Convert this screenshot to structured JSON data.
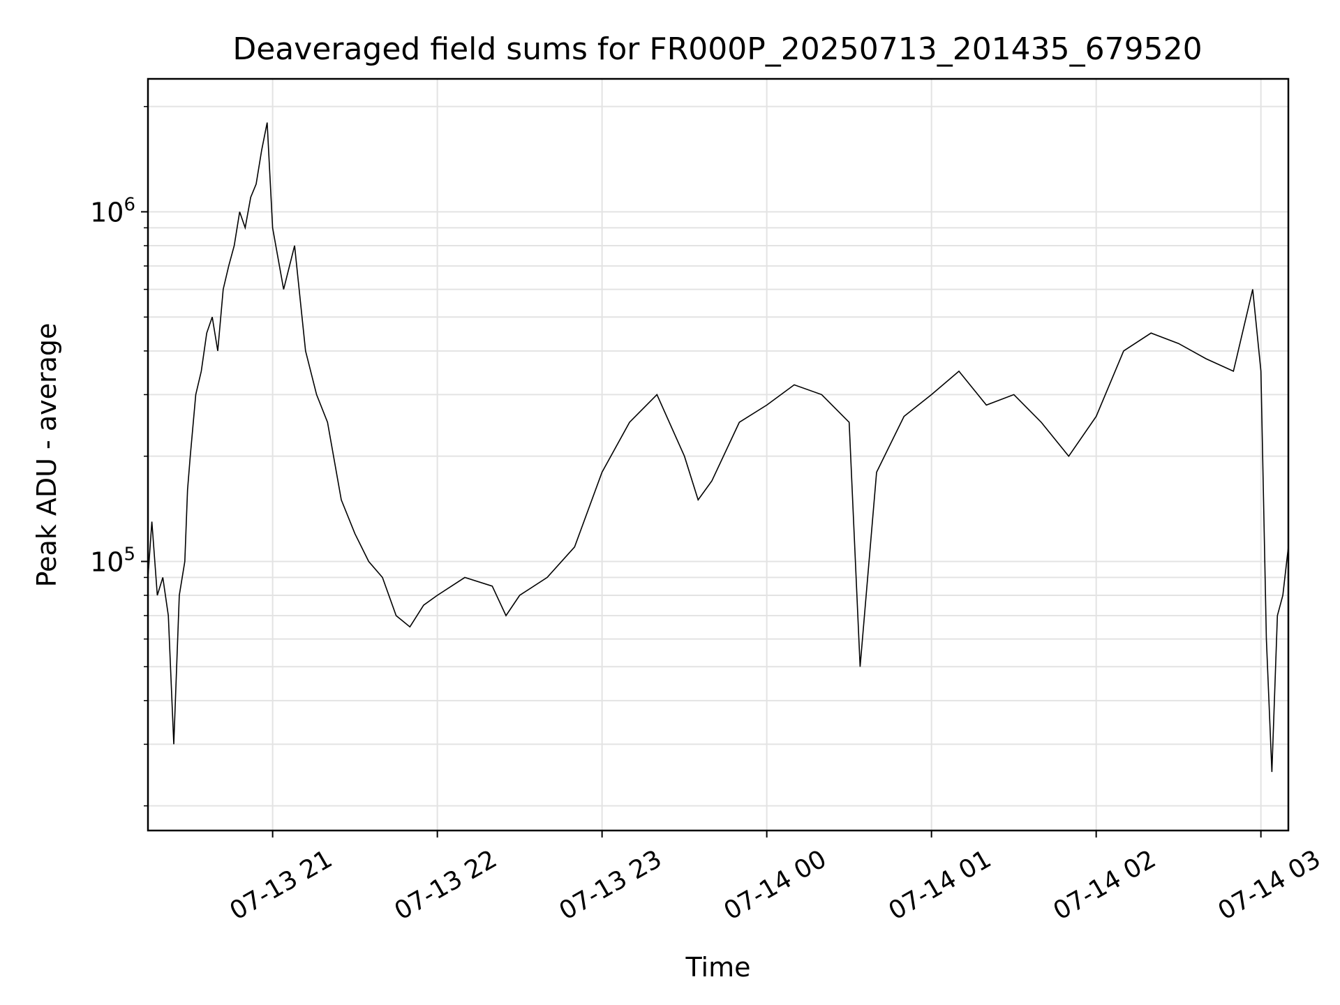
{
  "chart_data": {
    "type": "line",
    "title": "Deaveraged field sums for FR000P_20250713_201435_679520",
    "xlabel": "Time",
    "ylabel": "Peak ADU - average",
    "x_range": [
      "2025-07-13 20:14:35",
      "2025-07-14 03:10:00"
    ],
    "y_range": [
      17000,
      2400000
    ],
    "y_scale": "log",
    "grid": true,
    "line_color": "#000000",
    "x_ticks": [
      {
        "value": "2025-07-13 21:00",
        "label": "07-13 21"
      },
      {
        "value": "2025-07-13 22:00",
        "label": "07-13 22"
      },
      {
        "value": "2025-07-13 23:00",
        "label": "07-13 23"
      },
      {
        "value": "2025-07-14 00:00",
        "label": "07-14 00"
      },
      {
        "value": "2025-07-14 01:00",
        "label": "07-14 01"
      },
      {
        "value": "2025-07-14 02:00",
        "label": "07-14 02"
      },
      {
        "value": "2025-07-14 03:00",
        "label": "07-14 03"
      }
    ],
    "y_major_ticks": [
      {
        "value": 100000,
        "base": "10",
        "exp": "5"
      },
      {
        "value": 1000000,
        "base": "10",
        "exp": "6"
      }
    ],
    "series": [
      {
        "x": [
          "2025-07-13 20:14:35",
          "2025-07-13 20:16",
          "2025-07-13 20:18",
          "2025-07-13 20:20",
          "2025-07-13 20:22",
          "2025-07-13 20:24",
          "2025-07-13 20:26",
          "2025-07-13 20:28",
          "2025-07-13 20:29",
          "2025-07-13 20:30",
          "2025-07-13 20:32",
          "2025-07-13 20:34",
          "2025-07-13 20:36",
          "2025-07-13 20:38",
          "2025-07-13 20:40",
          "2025-07-13 20:42",
          "2025-07-13 20:44",
          "2025-07-13 20:46",
          "2025-07-13 20:48",
          "2025-07-13 20:50",
          "2025-07-13 20:52",
          "2025-07-13 20:54",
          "2025-07-13 20:56",
          "2025-07-13 20:58",
          "2025-07-13 21:00",
          "2025-07-13 21:04",
          "2025-07-13 21:08",
          "2025-07-13 21:12",
          "2025-07-13 21:16",
          "2025-07-13 21:20",
          "2025-07-13 21:25",
          "2025-07-13 21:30",
          "2025-07-13 21:35",
          "2025-07-13 21:40",
          "2025-07-13 21:45",
          "2025-07-13 21:50",
          "2025-07-13 21:55",
          "2025-07-13 22:00",
          "2025-07-13 22:10",
          "2025-07-13 22:20",
          "2025-07-13 22:25",
          "2025-07-13 22:30",
          "2025-07-13 22:40",
          "2025-07-13 22:50",
          "2025-07-13 23:00",
          "2025-07-13 23:10",
          "2025-07-13 23:20",
          "2025-07-13 23:30",
          "2025-07-13 23:35",
          "2025-07-13 23:40",
          "2025-07-13 23:50",
          "2025-07-14 00:00",
          "2025-07-14 00:10",
          "2025-07-14 00:20",
          "2025-07-14 00:30",
          "2025-07-14 00:34",
          "2025-07-14 00:40",
          "2025-07-14 00:50",
          "2025-07-14 01:00",
          "2025-07-14 01:10",
          "2025-07-14 01:20",
          "2025-07-14 01:30",
          "2025-07-14 01:40",
          "2025-07-14 01:50",
          "2025-07-14 02:00",
          "2025-07-14 02:10",
          "2025-07-14 02:20",
          "2025-07-14 02:30",
          "2025-07-14 02:40",
          "2025-07-14 02:50",
          "2025-07-14 02:57",
          "2025-07-14 03:00",
          "2025-07-14 03:02",
          "2025-07-14 03:04",
          "2025-07-14 03:06",
          "2025-07-14 03:08",
          "2025-07-14 03:10"
        ],
        "y": [
          90000,
          130000,
          80000,
          90000,
          70000,
          30000,
          80000,
          100000,
          160000,
          200000,
          300000,
          350000,
          450000,
          500000,
          400000,
          600000,
          700000,
          800000,
          1000000,
          900000,
          1100000,
          1200000,
          1500000,
          1800000,
          900000,
          600000,
          800000,
          400000,
          300000,
          250000,
          150000,
          120000,
          100000,
          90000,
          70000,
          65000,
          75000,
          80000,
          90000,
          85000,
          70000,
          80000,
          90000,
          110000,
          180000,
          250000,
          300000,
          200000,
          150000,
          170000,
          250000,
          280000,
          320000,
          300000,
          250000,
          50000,
          180000,
          260000,
          300000,
          350000,
          280000,
          300000,
          250000,
          200000,
          260000,
          400000,
          450000,
          420000,
          380000,
          350000,
          600000,
          350000,
          60000,
          25000,
          70000,
          80000,
          110000
        ]
      }
    ]
  }
}
